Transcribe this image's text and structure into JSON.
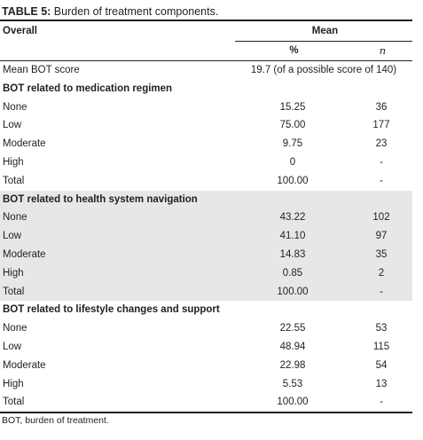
{
  "caption": {
    "label": "TABLE 5:",
    "text": " Burden of treatment components."
  },
  "header": {
    "overall": "Overall",
    "mean": "Mean",
    "pct": "%",
    "n": "n"
  },
  "mean_row": {
    "label": "Mean BOT score",
    "value": "19.7 (of a possible score of 140)"
  },
  "sections": [
    {
      "title": "BOT related to medication regimen",
      "rows": [
        {
          "label": "None",
          "pct": "15.25",
          "n": "36"
        },
        {
          "label": "Low",
          "pct": "75.00",
          "n": "177"
        },
        {
          "label": "Moderate",
          "pct": "9.75",
          "n": "23"
        },
        {
          "label": "High",
          "pct": "0",
          "n": "-"
        },
        {
          "label": "Total",
          "pct": "100.00",
          "n": "-"
        }
      ]
    },
    {
      "title": "BOT related to health system navigation",
      "rows": [
        {
          "label": "None",
          "pct": "43.22",
          "n": "102"
        },
        {
          "label": "Low",
          "pct": "41.10",
          "n": "97"
        },
        {
          "label": "Moderate",
          "pct": "14.83",
          "n": "35"
        },
        {
          "label": "High",
          "pct": "0.85",
          "n": "2"
        },
        {
          "label": "Total",
          "pct": "100.00",
          "n": "-"
        }
      ]
    },
    {
      "title": "BOT related to lifestyle changes and support",
      "rows": [
        {
          "label": "None",
          "pct": "22.55",
          "n": "53"
        },
        {
          "label": "Low",
          "pct": "48.94",
          "n": "115"
        },
        {
          "label": "Moderate",
          "pct": "22.98",
          "n": "54"
        },
        {
          "label": "High",
          "pct": "5.53",
          "n": "13"
        },
        {
          "label": "Total",
          "pct": "100.00",
          "n": "-"
        }
      ]
    }
  ],
  "footnote": "BOT, burden of treatment.",
  "colors": {
    "text": "#231f20",
    "shade": "#e6e7e8"
  }
}
